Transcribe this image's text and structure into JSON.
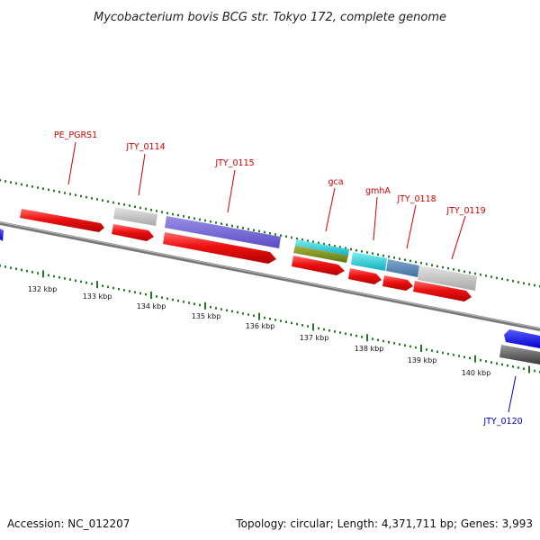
{
  "title": "Mycobacterium bovis BCG str. Tokyo 172, complete genome",
  "footer": {
    "accession": "Accession: NC_012207",
    "summary": "Topology: circular; Length: 4,371,711 bp; Genes: 3,993"
  },
  "ticks": [
    "132 kbp",
    "133 kbp",
    "134 kbp",
    "135 kbp",
    "136 kbp",
    "137 kbp",
    "138 kbp",
    "139 kbp",
    "140 kbp"
  ],
  "genes": [
    {
      "name": "PE_PGRS1",
      "color": "#cc0000"
    },
    {
      "name": "JTY_0114",
      "color": "#cc0000"
    },
    {
      "name": "JTY_0115",
      "color": "#cc0000"
    },
    {
      "name": "gca",
      "color": "#cc0000"
    },
    {
      "name": "gmhA",
      "color": "#cc0000"
    },
    {
      "name": "JTY_0118",
      "color": "#cc0000"
    },
    {
      "name": "JTY_0119",
      "color": "#cc0000"
    },
    {
      "name": "JTY_0120",
      "color": "#0000bb"
    }
  ],
  "colors": {
    "cds": "#ee1111",
    "backbone": "#888888",
    "tick_mark": "#1e7a1e",
    "reverse_cds": "#1111ee"
  }
}
